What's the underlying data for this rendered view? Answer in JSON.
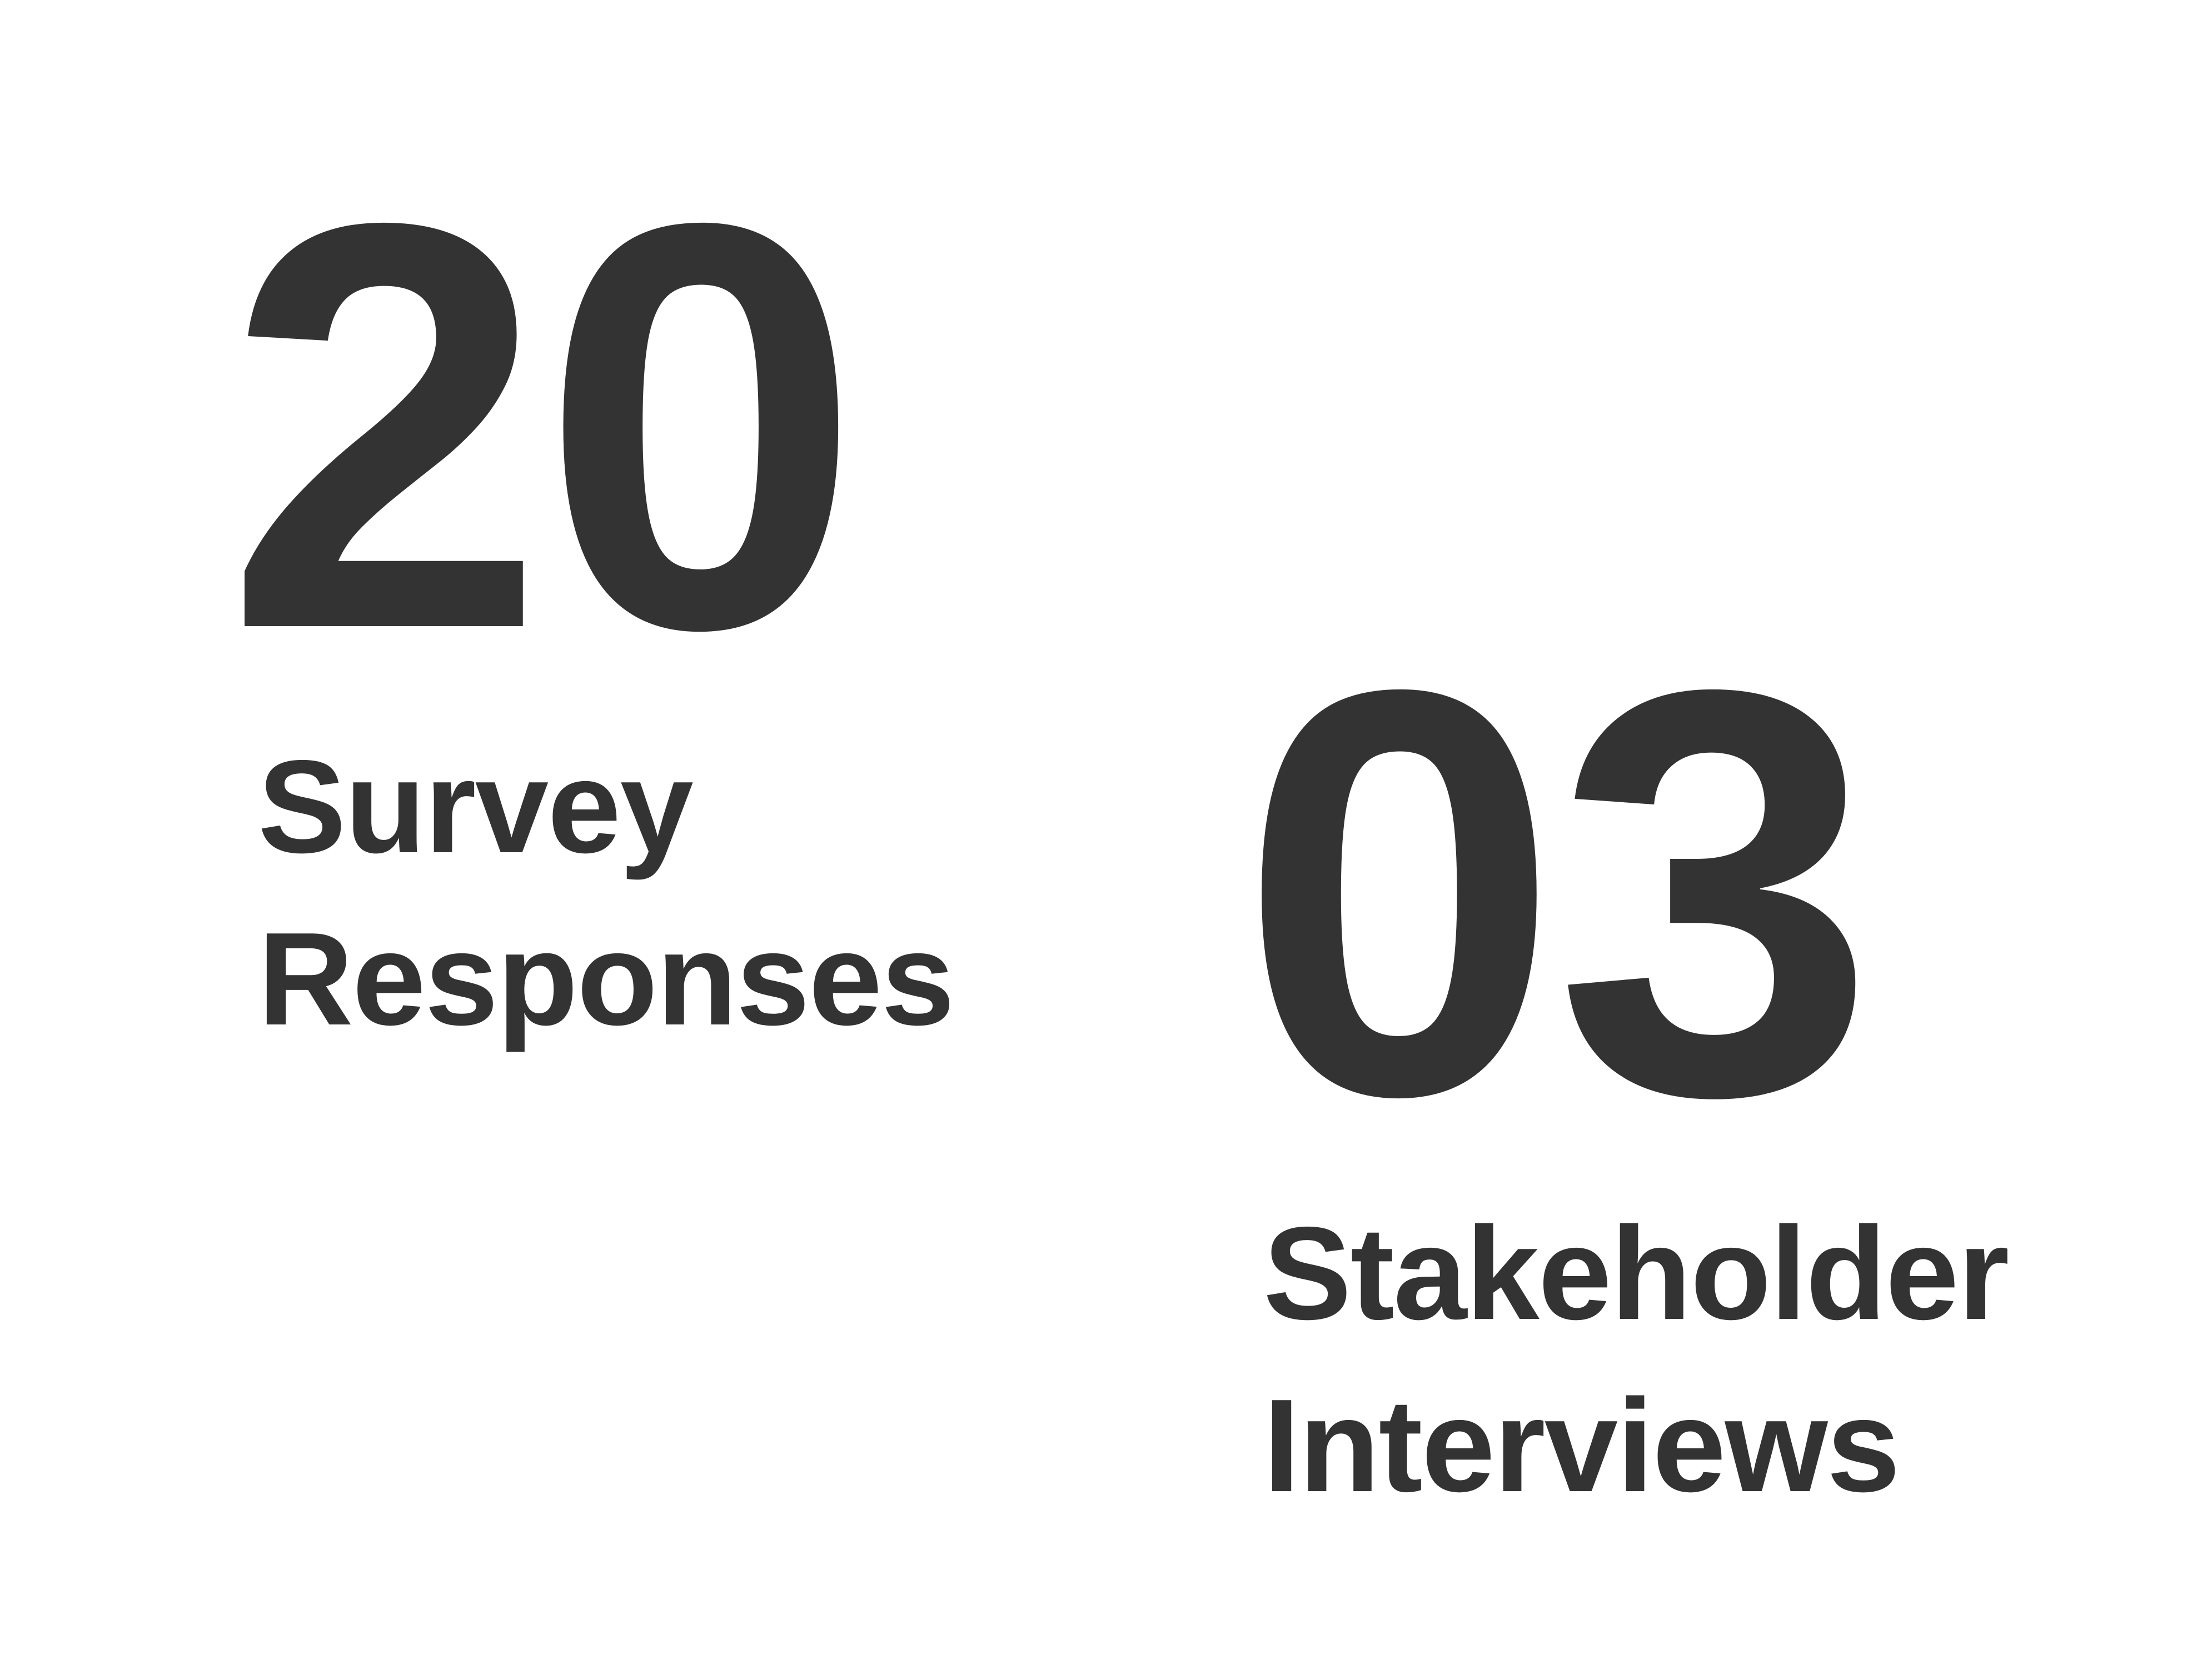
{
  "stats": [
    {
      "number": "20",
      "label_line1": "Survey",
      "label_line2": "Responses"
    },
    {
      "number": "03",
      "label_line1": "Stakeholder",
      "label_line2": "Interviews"
    }
  ],
  "colors": {
    "text": "#333333",
    "background": "#ffffff"
  }
}
